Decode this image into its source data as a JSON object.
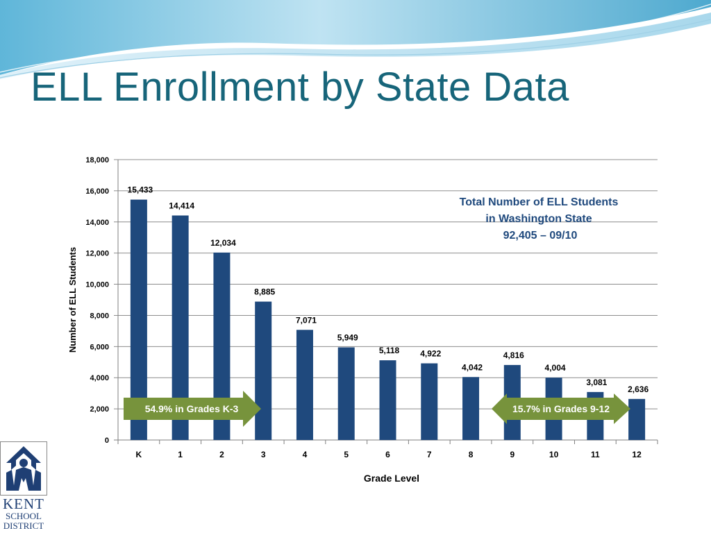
{
  "slide": {
    "title": "ELL Enrollment by State Data"
  },
  "logo": {
    "line1": "KENT",
    "line2": "SCHOOL",
    "line3": "DISTRICT",
    "mark": "TM"
  },
  "colors": {
    "title": "#17657a",
    "bar": "#1f497d",
    "arrow": "#77933c",
    "callout_text": "#1f497d",
    "banner_light": "#bfe3f2",
    "banner_dark": "#4ea9cf"
  },
  "chart_data": {
    "type": "bar",
    "categories": [
      "K",
      "1",
      "2",
      "3",
      "4",
      "5",
      "6",
      "7",
      "8",
      "9",
      "10",
      "11",
      "12"
    ],
    "values": [
      15433,
      14414,
      12034,
      8885,
      7071,
      5949,
      5118,
      4922,
      4042,
      4816,
      4004,
      3081,
      2636
    ],
    "data_labels": [
      "15,433",
      "14,414",
      "12,034",
      "8,885",
      "7,071",
      "5,949",
      "5,118",
      "4,922",
      "4,042",
      "4,816",
      "4,004",
      "3,081",
      "2,636"
    ],
    "title": "",
    "xlabel": "Grade Level",
    "ylabel": "Number of ELL Students",
    "ylim": [
      0,
      18000
    ],
    "yticks": [
      0,
      2000,
      4000,
      6000,
      8000,
      10000,
      12000,
      14000,
      16000,
      18000
    ],
    "ytick_labels": [
      "0",
      "2,000",
      "4,000",
      "6,000",
      "8,000",
      "10,000",
      "12,000",
      "14,000",
      "16,000",
      "18,000"
    ],
    "grid": true,
    "legend": "none",
    "annotation": {
      "lines": [
        "Total Number of ELL Students",
        "in Washington State",
        "92,405 – 09/10"
      ]
    },
    "callouts": [
      {
        "label": "54.9% in Grades K-3",
        "direction": "right"
      },
      {
        "label": "15.7% in Grades 9-12",
        "direction": "both"
      }
    ]
  }
}
